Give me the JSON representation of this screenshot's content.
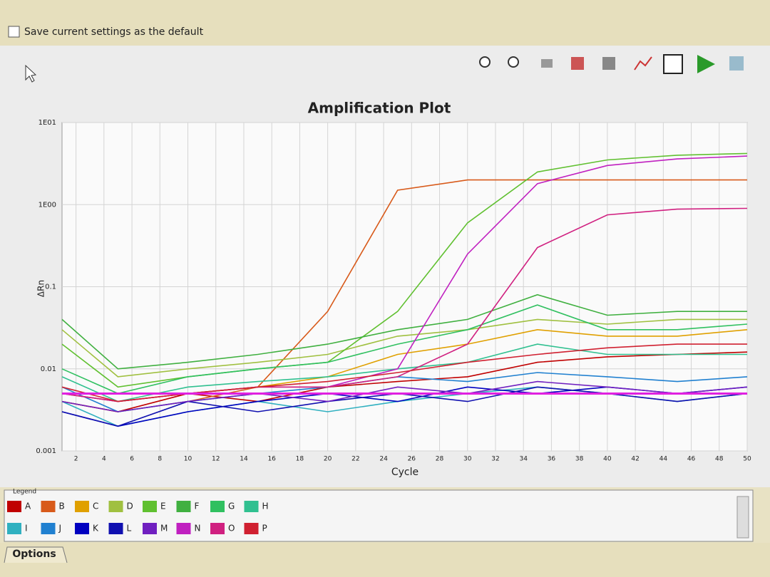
{
  "settings": {
    "checkbox_label": "Save current settings as the default"
  },
  "legend": {
    "title": "Legend"
  },
  "tabs": [
    "Options"
  ],
  "chart_data": {
    "type": "line",
    "title": "Amplification Plot",
    "x_label": "Cycle",
    "y_label": "ΔRn",
    "log_scale": true,
    "grid": true,
    "threshold": 0.005,
    "threshold_color": "#e020e0",
    "xlim": [
      1,
      50
    ],
    "xticks": [
      2,
      4,
      6,
      8,
      10,
      12,
      14,
      16,
      18,
      20,
      22,
      24,
      26,
      28,
      30,
      32,
      34,
      36,
      38,
      40,
      42,
      44,
      46,
      48,
      50
    ],
    "ylim": [
      0.001,
      10
    ],
    "yticks": [
      0.001,
      0.01,
      0.1,
      {
        "value": 1,
        "label": "1E00"
      },
      {
        "value": 10,
        "label": "1E01"
      }
    ],
    "x": [
      1,
      5,
      10,
      15,
      20,
      25,
      30,
      35,
      40,
      45,
      50
    ],
    "series": [
      {
        "name": "A",
        "color": "#c00000",
        "values": [
          0.004,
          0.003,
          0.005,
          0.004,
          0.006,
          0.007,
          0.008,
          0.012,
          0.014,
          0.015,
          0.016
        ]
      },
      {
        "name": "B",
        "color": "#d85a1a",
        "values": [
          0.004,
          0.003,
          0.004,
          0.006,
          0.05,
          1.5,
          2.0,
          2.0,
          2.0,
          2.0,
          2.0
        ]
      },
      {
        "name": "C",
        "color": "#e0a000",
        "values": [
          0.005,
          0.004,
          0.005,
          0.006,
          0.008,
          0.015,
          0.02,
          0.03,
          0.025,
          0.025,
          0.03
        ]
      },
      {
        "name": "D",
        "color": "#a0c040",
        "values": [
          0.03,
          0.008,
          0.01,
          0.012,
          0.015,
          0.025,
          0.03,
          0.04,
          0.035,
          0.04,
          0.04
        ]
      },
      {
        "name": "E",
        "color": "#60c030",
        "values": [
          0.02,
          0.006,
          0.008,
          0.01,
          0.012,
          0.05,
          0.6,
          2.5,
          3.5,
          4,
          4.2
        ]
      },
      {
        "name": "F",
        "color": "#40b040",
        "values": [
          0.04,
          0.01,
          0.012,
          0.015,
          0.02,
          0.03,
          0.04,
          0.08,
          0.045,
          0.05,
          0.05
        ]
      },
      {
        "name": "G",
        "color": "#30c060",
        "values": [
          0.01,
          0.005,
          0.008,
          0.01,
          0.012,
          0.02,
          0.03,
          0.06,
          0.03,
          0.03,
          0.035
        ]
      },
      {
        "name": "H",
        "color": "#30c090",
        "values": [
          0.008,
          0.004,
          0.006,
          0.007,
          0.008,
          0.01,
          0.012,
          0.02,
          0.015,
          0.015,
          0.015
        ]
      },
      {
        "name": "I",
        "color": "#30b0c0",
        "values": [
          0.004,
          0.002,
          0.003,
          0.004,
          0.003,
          0.004,
          0.005,
          0.006,
          0.005,
          0.004,
          0.005
        ]
      },
      {
        "name": "J",
        "color": "#2080d0",
        "values": [
          0.006,
          0.003,
          0.004,
          0.005,
          0.006,
          0.008,
          0.007,
          0.009,
          0.008,
          0.007,
          0.008
        ]
      },
      {
        "name": "K",
        "color": "#0000c0",
        "values": [
          0.003,
          0.002,
          0.003,
          0.004,
          0.005,
          0.004,
          0.006,
          0.005,
          0.006,
          0.005,
          0.006
        ]
      },
      {
        "name": "L",
        "color": "#1010b0",
        "values": [
          0.003,
          0.002,
          0.004,
          0.003,
          0.004,
          0.005,
          0.004,
          0.006,
          0.005,
          0.004,
          0.005
        ]
      },
      {
        "name": "M",
        "color": "#7020c0",
        "values": [
          0.004,
          0.003,
          0.004,
          0.005,
          0.004,
          0.006,
          0.005,
          0.007,
          0.006,
          0.005,
          0.006
        ]
      },
      {
        "name": "N",
        "color": "#c020c0",
        "values": [
          0.005,
          0.004,
          0.005,
          0.006,
          0.006,
          0.01,
          0.25,
          1.8,
          3.0,
          3.6,
          3.9
        ]
      },
      {
        "name": "O",
        "color": "#d02080",
        "values": [
          0.005,
          0.004,
          0.005,
          0.006,
          0.006,
          0.008,
          0.02,
          0.3,
          0.75,
          0.88,
          0.9
        ]
      },
      {
        "name": "P",
        "color": "#d02030",
        "values": [
          0.006,
          0.004,
          0.005,
          0.006,
          0.007,
          0.009,
          0.012,
          0.015,
          0.018,
          0.02,
          0.02
        ]
      }
    ]
  }
}
